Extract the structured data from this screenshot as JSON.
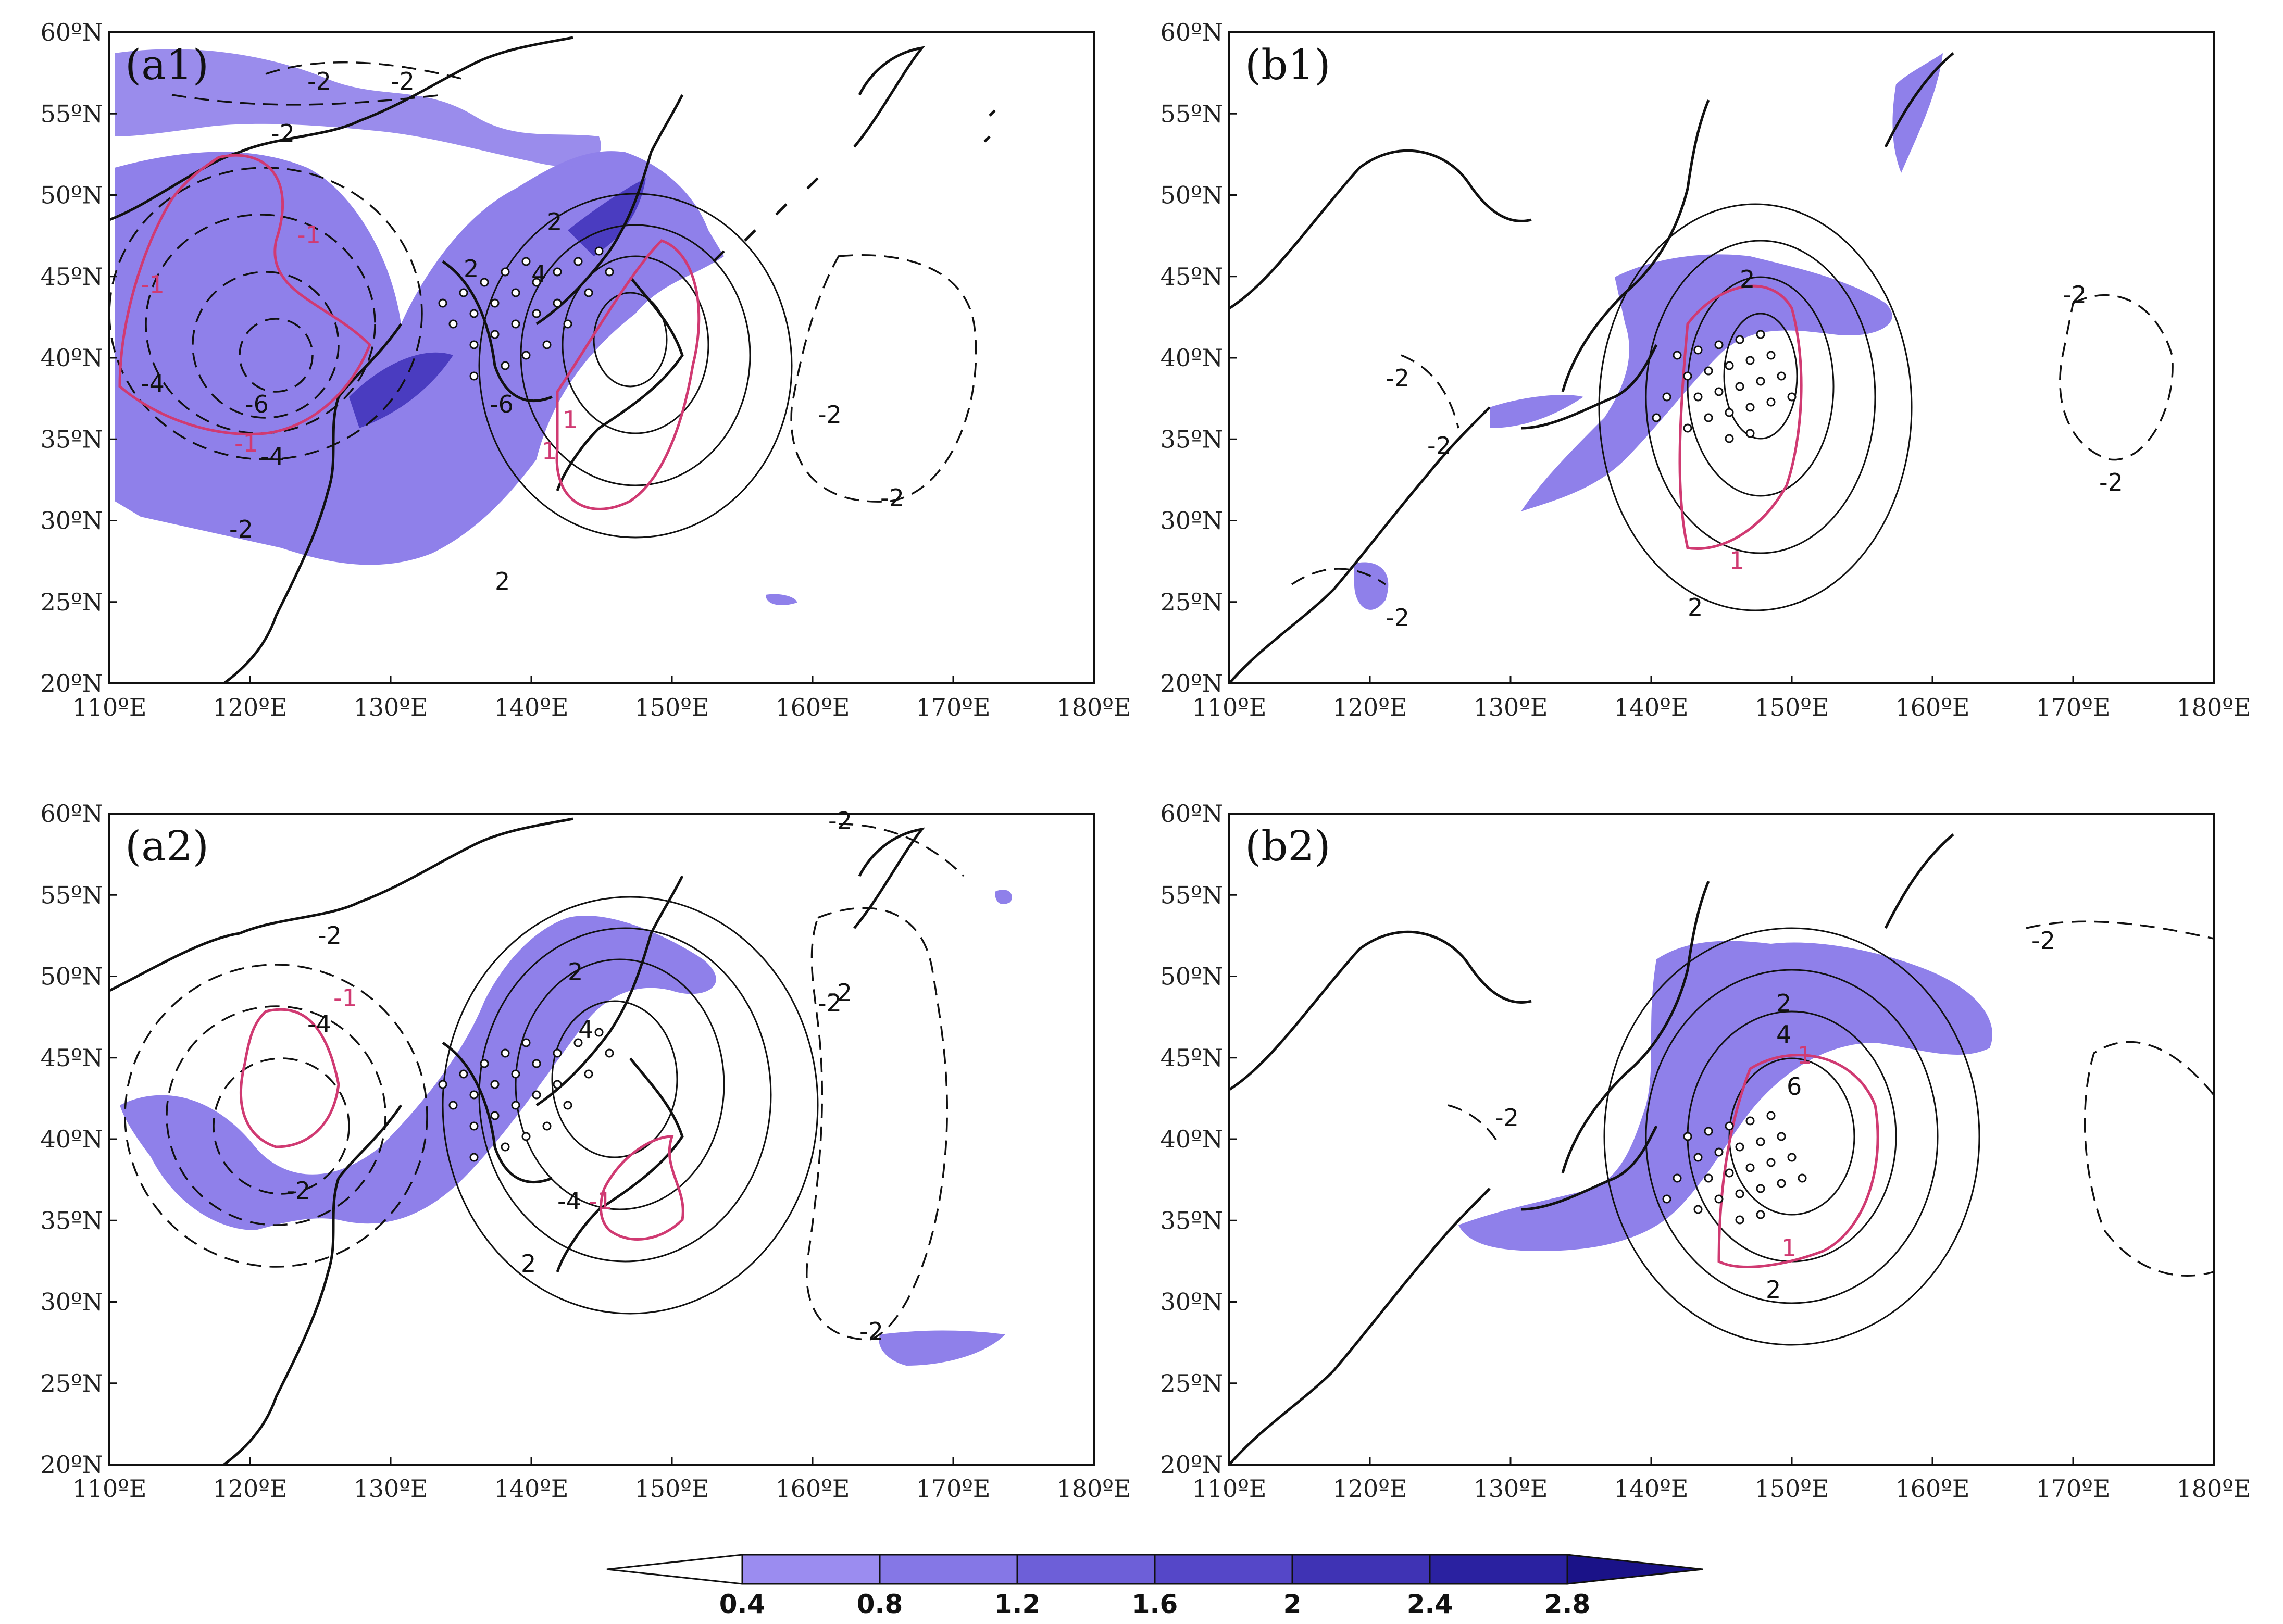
{
  "panels": [
    {
      "id": "a1",
      "label": "(a1)"
    },
    {
      "id": "b1",
      "label": "(b1)"
    },
    {
      "id": "a2",
      "label": "(a2)"
    },
    {
      "id": "b2",
      "label": "(b2)"
    }
  ],
  "axes": {
    "x_ticks": [
      "110ºE",
      "120ºE",
      "130ºE",
      "140ºE",
      "150ºE",
      "160ºE",
      "170ºE",
      "180ºE"
    ],
    "y_ticks": [
      "60ºN",
      "55ºN",
      "50ºN",
      "45ºN",
      "40ºN",
      "35ºN",
      "30ºN",
      "25ºN",
      "20ºN"
    ],
    "lon_range": [
      110,
      180
    ],
    "lat_range": [
      20,
      60
    ]
  },
  "colorbar": {
    "labels": [
      "0.4",
      "0.8",
      "1.2",
      "1.6",
      "2",
      "2.4",
      "2.8"
    ],
    "colors": [
      "#9b8cf0",
      "#8577e6",
      "#6d5fd8",
      "#5547c8",
      "#3f33b4",
      "#2a21a0",
      "#1a1288"
    ],
    "extend": "both"
  },
  "colors": {
    "shading": "#8f80ea",
    "shading_dark": "#4a3cc0",
    "red_contour": "#d03a72",
    "black": "#111111"
  },
  "contour_labels": {
    "a1": [
      "-2",
      "-2",
      "-2",
      "-1",
      "-1",
      "-4",
      "-6",
      "-1",
      "-4",
      "-2",
      "2",
      "2",
      "4",
      "-6",
      "1",
      "2",
      "-2",
      "-2",
      "1"
    ],
    "b1": [
      "2",
      "-2",
      "-2",
      "-2",
      "-2",
      "-2",
      "1",
      "2"
    ],
    "a2": [
      "-2",
      "-1",
      "-4",
      "-2",
      "2",
      "4",
      "-1",
      "-4",
      "-2",
      "-2",
      "2",
      "-2",
      "-2"
    ],
    "b2": [
      "2",
      "4",
      "1",
      "6",
      "-2",
      "-2",
      "1",
      "2"
    ]
  }
}
